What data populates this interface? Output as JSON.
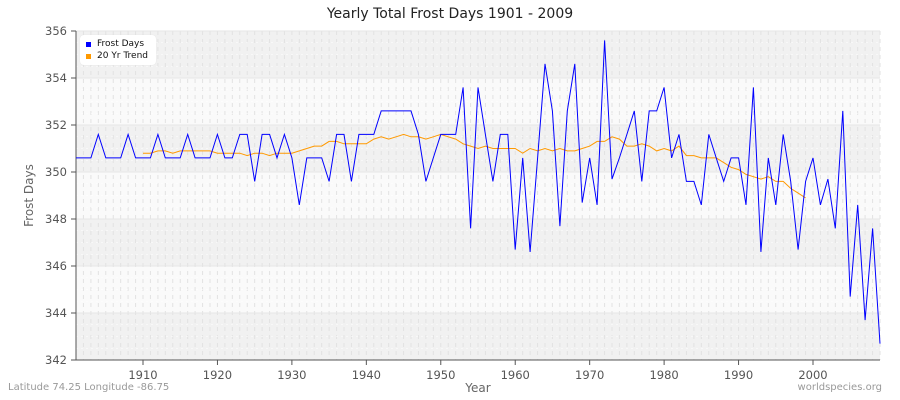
{
  "title": "Yearly Total Frost Days 1901 - 2009",
  "footer_left": "Latitude 74.25 Longitude -86.75",
  "footer_right": "worldspecies.org",
  "legend": [
    {
      "label": "Frost Days",
      "color": "#0000ff"
    },
    {
      "label": "20 Yr Trend",
      "color": "#ff9900"
    }
  ],
  "chart_data": {
    "type": "line",
    "title": "Yearly Total Frost Days 1901 - 2009",
    "xlabel": "Year",
    "ylabel": "Frost Days",
    "xlim": [
      1901,
      2009
    ],
    "ylim": [
      342,
      356
    ],
    "xticks": [
      1910,
      1920,
      1930,
      1940,
      1950,
      1960,
      1970,
      1980,
      1990,
      2000
    ],
    "yticks": [
      342,
      344,
      346,
      348,
      350,
      352,
      354,
      356
    ],
    "grid": true,
    "legend_position": "top-left",
    "series": [
      {
        "name": "Frost Days",
        "color": "#0000ff",
        "x_start": 1901,
        "values": [
          350.6,
          350.6,
          350.6,
          351.6,
          350.6,
          350.6,
          350.6,
          351.6,
          350.6,
          350.6,
          350.6,
          351.6,
          350.6,
          350.6,
          350.6,
          351.6,
          350.6,
          350.6,
          350.6,
          351.6,
          350.6,
          350.6,
          351.6,
          351.6,
          349.6,
          351.6,
          351.6,
          350.6,
          351.6,
          350.6,
          348.6,
          350.6,
          350.6,
          350.6,
          349.6,
          351.6,
          351.6,
          349.6,
          351.6,
          351.6,
          351.6,
          352.6,
          352.6,
          352.6,
          352.6,
          352.6,
          351.6,
          349.6,
          350.6,
          351.6,
          351.6,
          351.6,
          353.6,
          347.6,
          353.6,
          351.6,
          349.6,
          351.6,
          351.6,
          346.7,
          350.6,
          346.6,
          350.6,
          354.6,
          352.6,
          347.7,
          352.6,
          354.6,
          348.7,
          350.6,
          348.6,
          355.6,
          349.7,
          350.6,
          351.6,
          352.6,
          349.6,
          352.6,
          352.6,
          353.6,
          350.6,
          351.6,
          349.6,
          349.6,
          348.6,
          351.6,
          350.6,
          349.6,
          350.6,
          350.6,
          348.6,
          353.6,
          346.6,
          350.6,
          348.6,
          351.6,
          349.6,
          346.7,
          349.6,
          350.6,
          348.6,
          349.7,
          347.6,
          352.6,
          344.7,
          348.6,
          343.7,
          347.6,
          342.7
        ]
      },
      {
        "name": "20 Yr Trend",
        "color": "#ff9900",
        "x_start": 1910,
        "values": [
          350.8,
          350.8,
          350.9,
          350.9,
          350.8,
          350.9,
          350.9,
          350.9,
          350.9,
          350.9,
          350.8,
          350.8,
          350.8,
          350.8,
          350.7,
          350.8,
          350.8,
          350.7,
          350.8,
          350.8,
          350.8,
          350.9,
          351.0,
          351.1,
          351.1,
          351.3,
          351.3,
          351.2,
          351.2,
          351.2,
          351.2,
          351.4,
          351.5,
          351.4,
          351.5,
          351.6,
          351.5,
          351.5,
          351.4,
          351.5,
          351.6,
          351.5,
          351.4,
          351.2,
          351.1,
          351.0,
          351.1,
          351.0,
          351.0,
          351.0,
          351.0,
          350.8,
          351.0,
          350.9,
          351.0,
          350.9,
          351.0,
          350.9,
          350.9,
          351.0,
          351.1,
          351.3,
          351.3,
          351.5,
          351.4,
          351.1,
          351.1,
          351.2,
          351.1,
          350.9,
          351.0,
          350.9,
          351.1,
          350.7,
          350.7,
          350.6,
          350.6,
          350.6,
          350.4,
          350.2,
          350.1,
          349.9,
          349.8,
          349.7,
          349.8,
          349.6,
          349.6,
          349.3,
          349.1,
          348.9
        ]
      }
    ]
  }
}
